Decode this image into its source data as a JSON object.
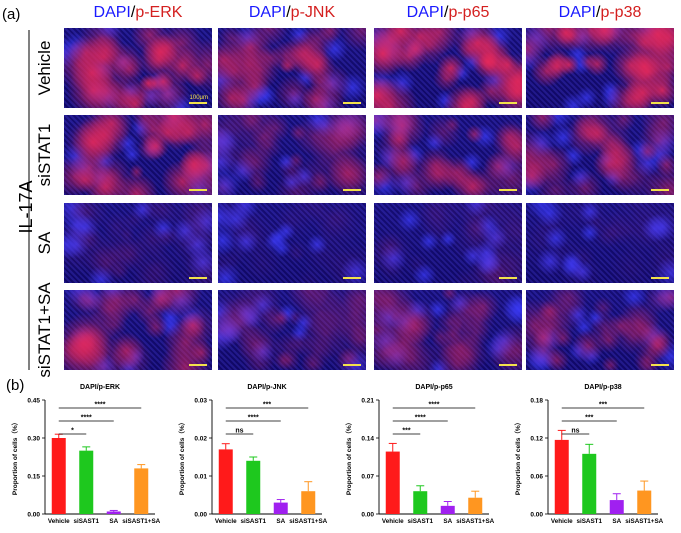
{
  "panel_a": {
    "letter": "(a)",
    "columns": [
      {
        "dapi": "DAPI",
        "slash": "/",
        "marker": "p-ERK"
      },
      {
        "dapi": "DAPI",
        "slash": "/",
        "marker": "p-JNK"
      },
      {
        "dapi": "DAPI",
        "slash": "/",
        "marker": "p-p65"
      },
      {
        "dapi": "DAPI",
        "slash": "/",
        "marker": "p-p38"
      }
    ],
    "rows": [
      "Vehicle",
      "siSTAT1",
      "SA",
      "siSTAT1+SA"
    ],
    "group_label": "IL-17A",
    "scale_label": "100μm",
    "red_intensity": [
      [
        0.75,
        0.55,
        0.85,
        0.8
      ],
      [
        0.7,
        0.35,
        0.55,
        0.5
      ],
      [
        0.12,
        0.05,
        0.1,
        0.05
      ],
      [
        0.55,
        0.3,
        0.35,
        0.45
      ]
    ],
    "colors": {
      "dapi_blue": "#1a1aff",
      "marker_red": "#d42020",
      "scale_bar": "#f2e14c"
    }
  },
  "panel_b": {
    "letter": "(b)",
    "ylabel": "Proportion of cells（%）",
    "bar_colors": [
      "#ff1a1a",
      "#1ec81e",
      "#a020f0",
      "#ff9620"
    ],
    "chart_data": [
      {
        "type": "bar",
        "title": "DAPI/p-ERK",
        "categories": [
          "Vehicle",
          "siSAST1",
          "SA",
          "siSAST1+SA"
        ],
        "values": [
          0.3,
          0.25,
          0.01,
          0.18
        ],
        "errors": [
          0.015,
          0.015,
          0.004,
          0.015
        ],
        "ylim": [
          0,
          0.45
        ],
        "yticks": [
          "0.00",
          "0.15",
          "0.30",
          "0.45"
        ],
        "ytick_values": [
          0,
          0.15,
          0.3,
          0.45
        ],
        "significance": [
          {
            "from": 0,
            "to": 1,
            "label": "*"
          },
          {
            "from": 0,
            "to": 2,
            "label": "****"
          },
          {
            "from": 0,
            "to": 3,
            "label": "****"
          }
        ]
      },
      {
        "type": "bar",
        "title": "DAPI/p-JNK",
        "categories": [
          "Vehicle",
          "siSAST1",
          "SA",
          "siSAST1+SA"
        ],
        "values": [
          0.017,
          0.014,
          0.003,
          0.006
        ],
        "errors": [
          0.0015,
          0.001,
          0.0008,
          0.0025
        ],
        "ylim": [
          0,
          0.03
        ],
        "yticks": [
          "0.00",
          "0.01",
          "0.02",
          "0.03"
        ],
        "ytick_values": [
          0,
          0.01,
          0.02,
          0.03
        ],
        "significance": [
          {
            "from": 0,
            "to": 1,
            "label": "ns"
          },
          {
            "from": 0,
            "to": 2,
            "label": "****"
          },
          {
            "from": 0,
            "to": 3,
            "label": "***"
          }
        ]
      },
      {
        "type": "bar",
        "title": "DAPI/p-p65",
        "categories": [
          "Vehicle",
          "siSAST1",
          "SA",
          "siSAST1+SA"
        ],
        "values": [
          0.115,
          0.042,
          0.015,
          0.03
        ],
        "errors": [
          0.015,
          0.01,
          0.008,
          0.012
        ],
        "ylim": [
          0,
          0.21
        ],
        "yticks": [
          "0.00",
          "0.07",
          "0.14",
          "0.21"
        ],
        "ytick_values": [
          0,
          0.07,
          0.14,
          0.21
        ],
        "significance": [
          {
            "from": 0,
            "to": 1,
            "label": "***"
          },
          {
            "from": 0,
            "to": 2,
            "label": "****"
          },
          {
            "from": 0,
            "to": 3,
            "label": "****"
          }
        ]
      },
      {
        "type": "bar",
        "title": "DAPI/p-p38",
        "categories": [
          "Vehicle",
          "siSAST1",
          "SA",
          "siSAST1+SA"
        ],
        "values": [
          0.117,
          0.095,
          0.022,
          0.037
        ],
        "errors": [
          0.015,
          0.015,
          0.01,
          0.015
        ],
        "ylim": [
          0,
          0.18
        ],
        "yticks": [
          "0.00",
          "0.06",
          "0.12",
          "0.18"
        ],
        "ytick_values": [
          0,
          0.06,
          0.12,
          0.18
        ],
        "significance": [
          {
            "from": 0,
            "to": 1,
            "label": "ns"
          },
          {
            "from": 0,
            "to": 2,
            "label": "***"
          },
          {
            "from": 0,
            "to": 3,
            "label": "***"
          }
        ]
      }
    ]
  }
}
